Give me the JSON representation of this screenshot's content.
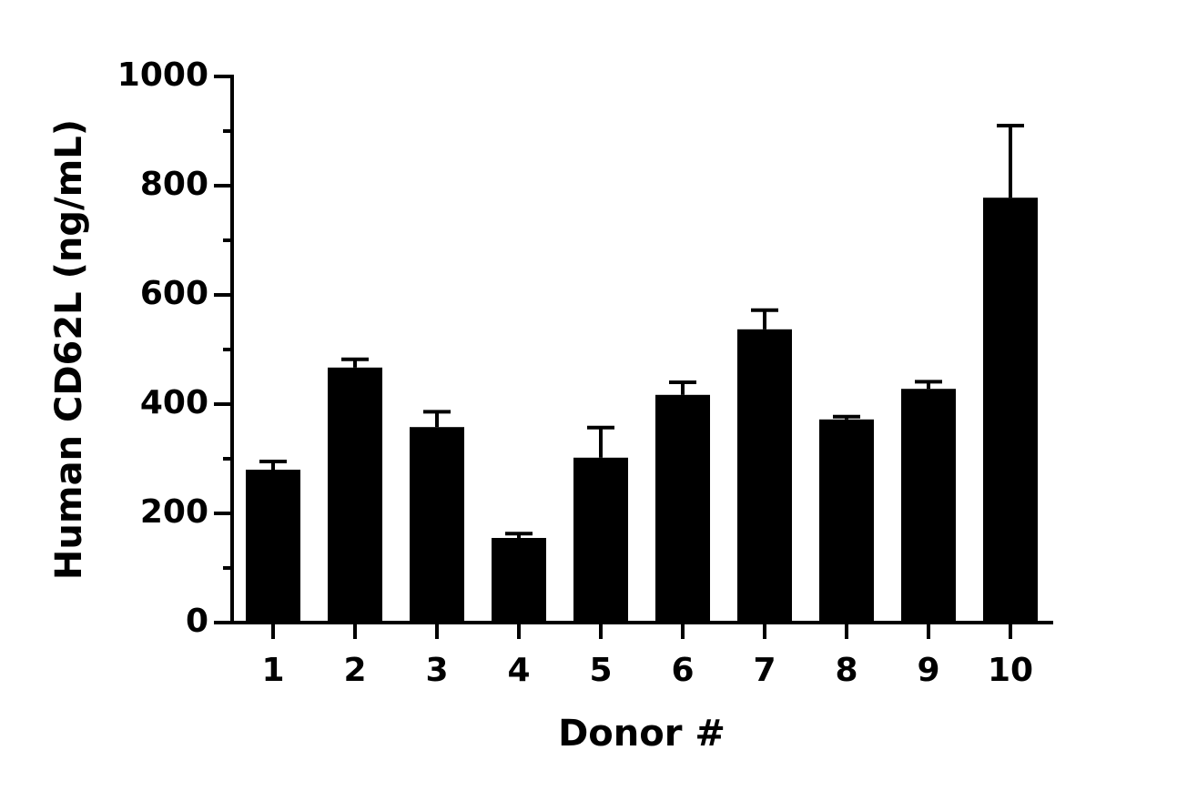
{
  "chart_data": {
    "type": "bar",
    "x_label": "Donor #",
    "y_label": "Human CD62L (ng/mL)",
    "categories": [
      "1",
      "2",
      "3",
      "4",
      "5",
      "6",
      "7",
      "8",
      "9",
      "10"
    ],
    "values": [
      280,
      467,
      358,
      155,
      302,
      417,
      537,
      372,
      428,
      778
    ],
    "errors": [
      15,
      15,
      28,
      8,
      55,
      23,
      35,
      5,
      13,
      132
    ],
    "color": "#000000",
    "ylim": [
      0,
      1000
    ],
    "yticks": [
      0,
      200,
      400,
      600,
      800,
      1000
    ],
    "yticks_minor": [
      100,
      300,
      500,
      700,
      900
    ]
  }
}
